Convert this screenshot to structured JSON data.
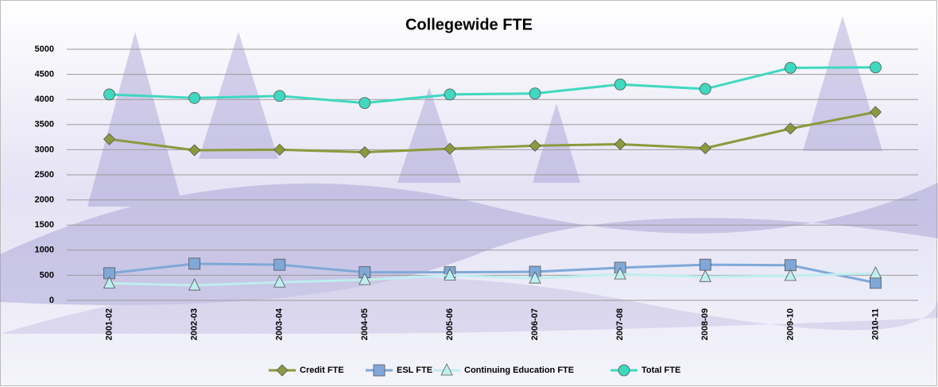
{
  "chart_data": {
    "type": "line",
    "title": "Collegewide FTE",
    "categories": [
      "2001-02",
      "2002-03",
      "2003-04",
      "2004-05",
      "2005-06",
      "2006-07",
      "2007-08",
      "2008-09",
      "2009-10",
      "2010-11"
    ],
    "series": [
      {
        "name": "Credit FTE",
        "color": "#8a9a3c",
        "marker": "diamond",
        "values": [
          3210,
          2990,
          3000,
          2950,
          3020,
          3080,
          3110,
          3030,
          3420,
          3750
        ]
      },
      {
        "name": "ESL FTE",
        "color": "#7fa8d8",
        "marker": "square",
        "values": [
          540,
          730,
          710,
          560,
          560,
          570,
          650,
          710,
          700,
          350
        ]
      },
      {
        "name": "Continuing Education FTE",
        "color": "#bfeeee",
        "marker": "triangle",
        "values": [
          340,
          300,
          360,
          410,
          500,
          440,
          520,
          470,
          490,
          540
        ]
      },
      {
        "name": "Total FTE",
        "color": "#3fd8c0",
        "marker": "circle",
        "values": [
          4100,
          4030,
          4070,
          3930,
          4100,
          4120,
          4300,
          4210,
          4630,
          4640
        ]
      }
    ],
    "ylim": [
      0,
      5000
    ],
    "yticks": [
      0,
      500,
      1000,
      1500,
      2000,
      2500,
      3000,
      3500,
      4000,
      4500,
      5000
    ],
    "grid": true,
    "legend": "bottom"
  }
}
